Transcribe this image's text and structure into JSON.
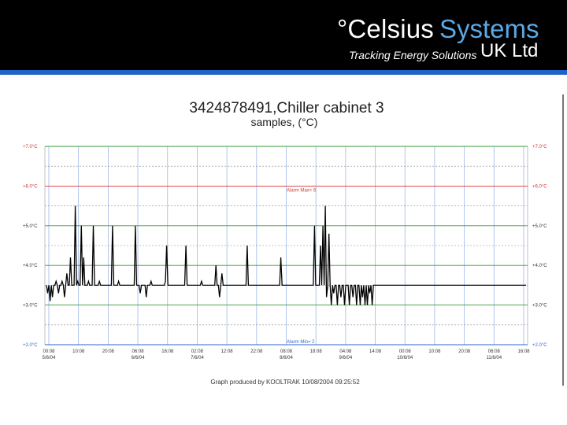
{
  "brand": {
    "name_part1": "°Celsius",
    "name_part2": "Systems",
    "tagline": "Tracking Energy Solutions",
    "suffix": "UK Ltd",
    "colors": {
      "header_bg": "#000000",
      "stripe": "#1e63c8",
      "accent": "#5aa9e6"
    }
  },
  "footer": {
    "credit": "Graph produced by KOOLTRAK 10/08/2004 09:25:52"
  },
  "chart_data": {
    "type": "line",
    "title": "3424878491,Chiller cabinet 3",
    "subtitle": "samples, (°C)",
    "xlabel": "",
    "ylabel": "",
    "ylim": [
      2.0,
      7.0
    ],
    "yticks": [
      "+2.0°C",
      "+3.0°C",
      "+4.0°C",
      "+5.0°C",
      "+6.0°C",
      "+7.0°C"
    ],
    "ytick_values": [
      2.0,
      3.0,
      4.0,
      5.0,
      6.0,
      7.0
    ],
    "ytick_colors": [
      "#3366cc",
      "#333333",
      "#333333",
      "#333333",
      "#cc3333",
      "#cc3333"
    ],
    "xticks": [
      {
        "time": "00:08",
        "date": "5/6/04"
      },
      {
        "time": "10:08",
        "date": ""
      },
      {
        "time": "20:08",
        "date": ""
      },
      {
        "time": "06:08",
        "date": "6/6/04"
      },
      {
        "time": "16:08",
        "date": ""
      },
      {
        "time": "02:08",
        "date": "7/6/04"
      },
      {
        "time": "12:08",
        "date": ""
      },
      {
        "time": "22:08",
        "date": ""
      },
      {
        "time": "08:08",
        "date": "8/6/04"
      },
      {
        "time": "18:08",
        "date": ""
      },
      {
        "time": "04:08",
        "date": "9/6/04"
      },
      {
        "time": "14:08",
        "date": ""
      },
      {
        "time": "00:08",
        "date": "10/6/04"
      },
      {
        "time": "10:08",
        "date": ""
      },
      {
        "time": "20:08",
        "date": ""
      },
      {
        "time": "06:08",
        "date": "11/6/04"
      },
      {
        "time": "16:08",
        "date": ""
      }
    ],
    "grid": true,
    "alarm_max": {
      "label": "Alarm Max= 6",
      "value": 6.0,
      "color": "#e03030"
    },
    "alarm_min": {
      "label": "Alarm Min= 2",
      "value": 2.0,
      "color": "#3366cc"
    },
    "series": [
      {
        "color": "#000000",
        "values": [
          3.5,
          3.3,
          3.5,
          3.1,
          3.5,
          3.2,
          3.5,
          3.5,
          3.6,
          3.5,
          3.3,
          3.5,
          3.5,
          3.6,
          3.5,
          3.2,
          3.5,
          3.8,
          3.5,
          3.5,
          4.2,
          3.5,
          3.5,
          3.5,
          5.5,
          3.5,
          3.6,
          3.5,
          3.5,
          5.0,
          3.5,
          4.2,
          3.5,
          3.5,
          3.5,
          3.6,
          3.5,
          3.5,
          3.5,
          5.0,
          3.5,
          3.5,
          3.5,
          3.5,
          3.6,
          3.5,
          3.5,
          3.5,
          3.5,
          3.5,
          3.5,
          3.5,
          3.5,
          3.5,
          3.5,
          5.0,
          3.5,
          3.5,
          3.5,
          3.5,
          3.6,
          3.5,
          3.5,
          3.5,
          3.5,
          3.5,
          3.5,
          3.5,
          3.5,
          3.5,
          3.5,
          3.5,
          3.5,
          3.5,
          5.0,
          3.5,
          3.5,
          3.5,
          3.3,
          3.5,
          3.5,
          3.5,
          3.5,
          3.2,
          3.5,
          3.5,
          3.5,
          3.6,
          3.5,
          3.5,
          3.5,
          3.5,
          3.5,
          3.5,
          3.5,
          3.5,
          3.5,
          3.5,
          3.5,
          3.6,
          4.5,
          3.5,
          3.5,
          3.5,
          3.5,
          3.5,
          3.5,
          3.5,
          3.5,
          3.5,
          3.5,
          3.5,
          3.5,
          3.5,
          3.5,
          3.5,
          4.5,
          3.5,
          3.5,
          3.5,
          3.5,
          3.5,
          3.5,
          3.5,
          3.5,
          3.5,
          3.5,
          3.5,
          3.5,
          3.6,
          3.5,
          3.5,
          3.5,
          3.5,
          3.5,
          3.5,
          3.5,
          3.5,
          3.5,
          3.5,
          3.5,
          4.0,
          3.5,
          3.5,
          3.2,
          3.5,
          3.8,
          3.5,
          3.5,
          3.5,
          3.5,
          3.5,
          3.5,
          3.5,
          3.5,
          3.5,
          3.5,
          3.5,
          3.5,
          3.5,
          3.5,
          3.5,
          3.5,
          3.5,
          3.5,
          3.5,
          3.5,
          4.5,
          3.5,
          3.5,
          3.5,
          3.5,
          3.5,
          3.5,
          3.5,
          3.5,
          3.5,
          3.5,
          3.5,
          3.5,
          3.5,
          3.5,
          3.5,
          3.5,
          3.5,
          3.5,
          3.5,
          3.5,
          3.5,
          3.5,
          3.5,
          3.5,
          3.5,
          3.5,
          3.5,
          4.2,
          3.5,
          3.5,
          3.5,
          3.5,
          3.5,
          3.5,
          3.5,
          3.5,
          3.5,
          3.5,
          3.5,
          3.5,
          3.5,
          3.5,
          3.5,
          3.5,
          3.5,
          3.5,
          3.5,
          3.5,
          3.5,
          3.5,
          3.5,
          3.5,
          3.5,
          3.5,
          3.5,
          5.0,
          3.5,
          3.5,
          3.5,
          3.5,
          4.5,
          3.5,
          5.0,
          3.5,
          5.5,
          3.2,
          3.5,
          4.8,
          3.5,
          3.0,
          3.5,
          3.3,
          3.5,
          3.5,
          3.0,
          3.5,
          3.5,
          3.2,
          3.5,
          3.5,
          3.0,
          3.5,
          3.5,
          3.5,
          3.0,
          3.5,
          3.5,
          3.2,
          3.5,
          3.5,
          3.0,
          3.5,
          3.5,
          3.0,
          3.5,
          3.2,
          3.5,
          3.0,
          3.5,
          3.0,
          3.5,
          3.3,
          3.5,
          3.0,
          3.5,
          3.5,
          3.5,
          3.5,
          3.5,
          3.5,
          3.5,
          3.5,
          3.5,
          3.5,
          3.5,
          3.5,
          3.5,
          3.5,
          3.5,
          3.5,
          3.5,
          3.5,
          3.5,
          3.5,
          3.5,
          3.5,
          3.5,
          3.5,
          3.5,
          3.5,
          3.5,
          3.5,
          3.5,
          3.5,
          3.5,
          3.5,
          3.5,
          3.5,
          3.5,
          3.5,
          3.5,
          3.5,
          3.5,
          3.5,
          3.5,
          3.5,
          3.5,
          3.5,
          3.5,
          3.5,
          3.5,
          3.5,
          3.5,
          3.5,
          3.5,
          3.5,
          3.5,
          3.5,
          3.5,
          3.5,
          3.5,
          3.5,
          3.5,
          3.5,
          3.5,
          3.5,
          3.5,
          3.5,
          3.5,
          3.5,
          3.5,
          3.5,
          3.5,
          3.5,
          3.5,
          3.5,
          3.5,
          3.5,
          3.5,
          3.5,
          3.5,
          3.5,
          3.5,
          3.5,
          3.5,
          3.5,
          3.5,
          3.5,
          3.5,
          3.5,
          3.5,
          3.5,
          3.5,
          3.5,
          3.5,
          3.5,
          3.5,
          3.5,
          3.5,
          3.5,
          3.5,
          3.5,
          3.5,
          3.5,
          3.5,
          3.5,
          3.5,
          3.5,
          3.5,
          3.5,
          3.5,
          3.5,
          3.5,
          3.5,
          3.5,
          3.5,
          3.5,
          3.5,
          3.5,
          3.5,
          3.5,
          3.5,
          3.5,
          3.5,
          3.5,
          3.5,
          3.5,
          3.5,
          3.5,
          3.5,
          3.5,
          3.5
        ]
      }
    ]
  }
}
